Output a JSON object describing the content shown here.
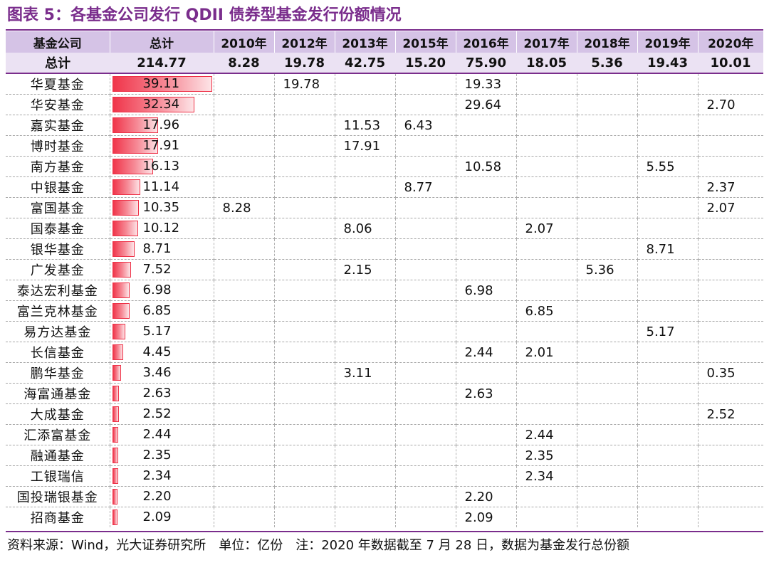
{
  "title": "图表 5：各基金公司发行 QDII 债券型基金发行份额情况",
  "table": {
    "header": [
      "基金公司",
      "总计",
      "2010年",
      "2012年",
      "2013年",
      "2015年",
      "2016年",
      "2017年",
      "2018年",
      "2019年",
      "2020年"
    ],
    "total_row": [
      "总计",
      "214.77",
      "8.28",
      "19.78",
      "42.75",
      "15.20",
      "75.90",
      "18.05",
      "5.36",
      "19.43",
      "10.01"
    ],
    "max_total": 39.11,
    "rows": [
      {
        "name": "华夏基金",
        "total": "39.11",
        "total_value": 39.11,
        "years": [
          "",
          "19.78",
          "",
          "",
          "19.33",
          "",
          "",
          "",
          ""
        ]
      },
      {
        "name": "华安基金",
        "total": "32.34",
        "total_value": 32.34,
        "years": [
          "",
          "",
          "",
          "",
          "29.64",
          "",
          "",
          "",
          "2.70"
        ]
      },
      {
        "name": "嘉实基金",
        "total": "17.96",
        "total_value": 17.96,
        "years": [
          "",
          "",
          "11.53",
          "6.43",
          "",
          "",
          "",
          "",
          ""
        ]
      },
      {
        "name": "博时基金",
        "total": "17.91",
        "total_value": 17.91,
        "years": [
          "",
          "",
          "17.91",
          "",
          "",
          "",
          "",
          "",
          ""
        ]
      },
      {
        "name": "南方基金",
        "total": "16.13",
        "total_value": 16.13,
        "years": [
          "",
          "",
          "",
          "",
          "10.58",
          "",
          "",
          "5.55",
          ""
        ]
      },
      {
        "name": "中银基金",
        "total": "11.14",
        "total_value": 11.14,
        "years": [
          "",
          "",
          "",
          "8.77",
          "",
          "",
          "",
          "",
          "2.37"
        ]
      },
      {
        "name": "富国基金",
        "total": "10.35",
        "total_value": 10.35,
        "years": [
          "8.28",
          "",
          "",
          "",
          "",
          "",
          "",
          "",
          "2.07"
        ]
      },
      {
        "name": "国泰基金",
        "total": "10.12",
        "total_value": 10.12,
        "years": [
          "",
          "",
          "8.06",
          "",
          "",
          "2.07",
          "",
          "",
          ""
        ]
      },
      {
        "name": "银华基金",
        "total": "8.71",
        "total_value": 8.71,
        "years": [
          "",
          "",
          "",
          "",
          "",
          "",
          "",
          "8.71",
          ""
        ]
      },
      {
        "name": "广发基金",
        "total": "7.52",
        "total_value": 7.52,
        "years": [
          "",
          "",
          "2.15",
          "",
          "",
          "",
          "5.36",
          "",
          ""
        ]
      },
      {
        "name": "泰达宏利基金",
        "total": "6.98",
        "total_value": 6.98,
        "years": [
          "",
          "",
          "",
          "",
          "6.98",
          "",
          "",
          "",
          ""
        ]
      },
      {
        "name": "富兰克林基金",
        "total": "6.85",
        "total_value": 6.85,
        "years": [
          "",
          "",
          "",
          "",
          "",
          "6.85",
          "",
          "",
          ""
        ]
      },
      {
        "name": "易方达基金",
        "total": "5.17",
        "total_value": 5.17,
        "years": [
          "",
          "",
          "",
          "",
          "",
          "",
          "",
          "5.17",
          ""
        ]
      },
      {
        "name": "长信基金",
        "total": "4.45",
        "total_value": 4.45,
        "years": [
          "",
          "",
          "",
          "",
          "2.44",
          "2.01",
          "",
          "",
          ""
        ]
      },
      {
        "name": "鹏华基金",
        "total": "3.46",
        "total_value": 3.46,
        "years": [
          "",
          "",
          "3.11",
          "",
          "",
          "",
          "",
          "",
          "0.35"
        ]
      },
      {
        "name": "海富通基金",
        "total": "2.63",
        "total_value": 2.63,
        "years": [
          "",
          "",
          "",
          "",
          "2.63",
          "",
          "",
          "",
          ""
        ]
      },
      {
        "name": "大成基金",
        "total": "2.52",
        "total_value": 2.52,
        "years": [
          "",
          "",
          "",
          "",
          "",
          "",
          "",
          "",
          "2.52"
        ]
      },
      {
        "name": "汇添富基金",
        "total": "2.44",
        "total_value": 2.44,
        "years": [
          "",
          "",
          "",
          "",
          "",
          "2.44",
          "",
          "",
          ""
        ]
      },
      {
        "name": "融通基金",
        "total": "2.35",
        "total_value": 2.35,
        "years": [
          "",
          "",
          "",
          "",
          "",
          "2.35",
          "",
          "",
          ""
        ]
      },
      {
        "name": "工银瑞信",
        "total": "2.34",
        "total_value": 2.34,
        "years": [
          "",
          "",
          "",
          "",
          "",
          "2.34",
          "",
          "",
          ""
        ]
      },
      {
        "name": "国投瑞银基金",
        "total": "2.20",
        "total_value": 2.2,
        "years": [
          "",
          "",
          "",
          "",
          "2.20",
          "",
          "",
          "",
          ""
        ]
      },
      {
        "name": "招商基金",
        "total": "2.09",
        "total_value": 2.09,
        "years": [
          "",
          "",
          "",
          "",
          "2.09",
          "",
          "",
          "",
          ""
        ]
      }
    ]
  },
  "footer": "资料来源：Wind，光大证券研究所　单位：亿份　注：2020 年数据截至 7 月 28 日，数据为基金发行总份额",
  "colors": {
    "accent": "#7a2d8c",
    "header_bg": "#d5c3e6",
    "total_bg": "#ebe2f3",
    "bar": "#f0354a"
  }
}
